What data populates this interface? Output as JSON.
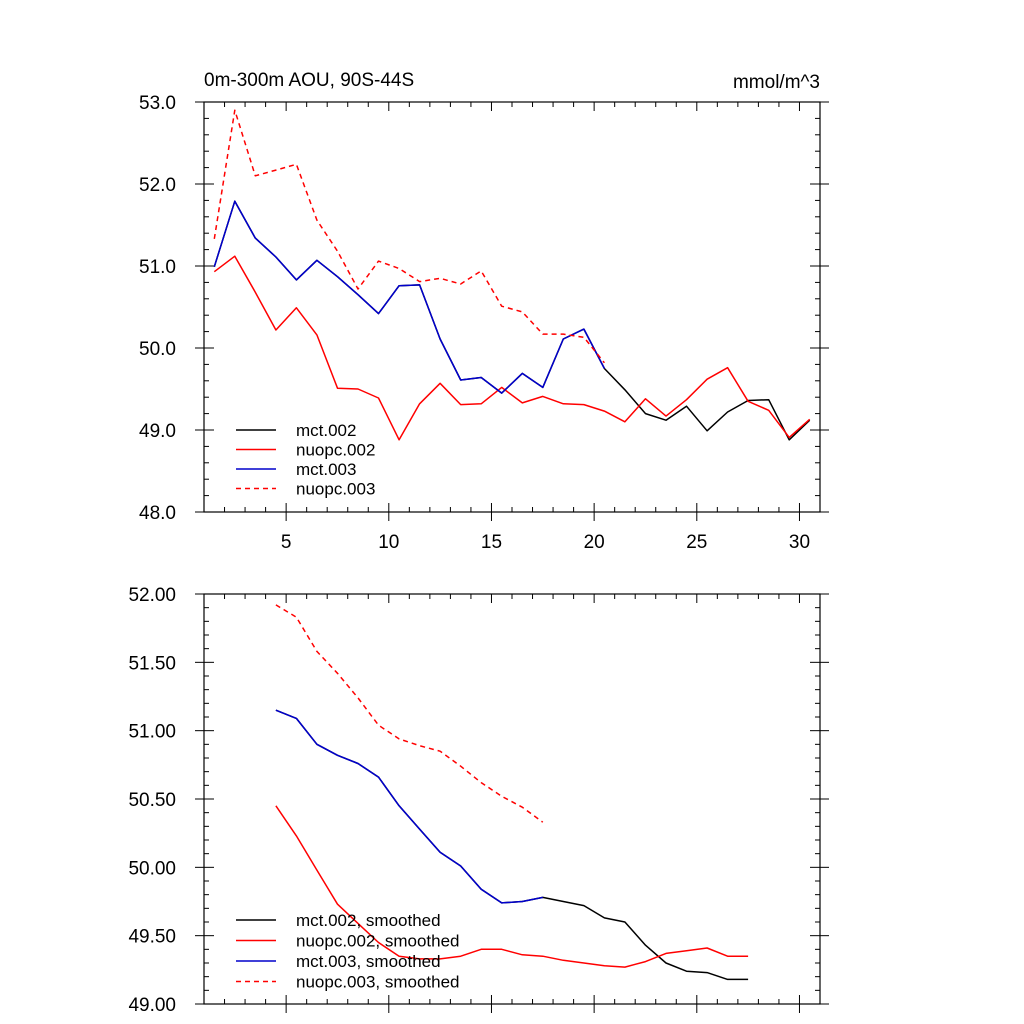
{
  "chart_data": [
    {
      "type": "line",
      "title": "0m-300m AOU, 90S-44S",
      "units": "mmol/m^3",
      "xlim": [
        1,
        31
      ],
      "ylim": [
        48.0,
        53.0
      ],
      "x_ticks": [
        5,
        10,
        15,
        20,
        25,
        30
      ],
      "x_tick_labels": [
        "5",
        "10",
        "15",
        "20",
        "25",
        "30"
      ],
      "y_ticks": [
        48.0,
        49.0,
        50.0,
        51.0,
        52.0,
        53.0
      ],
      "y_tick_labels": [
        "48.0",
        "49.0",
        "50.0",
        "51.0",
        "52.0",
        "53.0"
      ],
      "series": [
        {
          "name": "mct.002",
          "color": "#000000",
          "dash": false,
          "x": [
            1.5,
            2.5,
            3.5,
            4.5,
            5.5,
            6.5,
            7.5,
            8.5,
            9.5,
            10.5,
            11.5,
            12.5,
            13.5,
            14.5,
            15.5,
            16.5,
            17.5,
            18.5,
            19.5,
            20.5,
            21.5,
            22.5,
            23.5,
            24.5,
            25.5,
            26.5,
            27.5,
            28.5,
            29.5,
            30.5
          ],
          "y": [
            50.99,
            51.79,
            51.34,
            51.11,
            50.83,
            51.07,
            50.87,
            50.65,
            50.42,
            50.76,
            50.77,
            50.11,
            49.61,
            49.64,
            49.45,
            49.69,
            49.52,
            50.11,
            50.23,
            49.75,
            49.49,
            49.2,
            49.12,
            49.29,
            48.99,
            49.22,
            49.36,
            49.37,
            48.88,
            49.12
          ]
        },
        {
          "name": "nuopc.002",
          "color": "#ff0000",
          "dash": false,
          "x": [
            1.5,
            2.5,
            3.5,
            4.5,
            5.5,
            6.5,
            7.5,
            8.5,
            9.5,
            10.5,
            11.5,
            12.5,
            13.5,
            14.5,
            15.5,
            16.5,
            17.5,
            18.5,
            19.5,
            20.5,
            21.5,
            22.5,
            23.5,
            24.5,
            25.5,
            26.5,
            27.5,
            28.5,
            29.5,
            30.5
          ],
          "y": [
            50.93,
            51.12,
            50.68,
            50.22,
            50.49,
            50.16,
            49.51,
            49.5,
            49.39,
            48.88,
            49.32,
            49.57,
            49.31,
            49.32,
            49.52,
            49.33,
            49.41,
            49.32,
            49.31,
            49.23,
            49.1,
            49.38,
            49.17,
            49.37,
            49.62,
            49.76,
            49.35,
            49.24,
            48.91,
            49.13
          ]
        },
        {
          "name": "mct.003",
          "color": "#0000cc",
          "dash": false,
          "x": [
            1.5,
            2.5,
            3.5,
            4.5,
            5.5,
            6.5,
            7.5,
            8.5,
            9.5,
            10.5,
            11.5,
            12.5,
            13.5,
            14.5,
            15.5,
            16.5,
            17.5,
            18.5,
            19.5,
            20.5
          ],
          "y": [
            50.99,
            51.79,
            51.34,
            51.11,
            50.83,
            51.07,
            50.87,
            50.65,
            50.42,
            50.76,
            50.77,
            50.11,
            49.61,
            49.64,
            49.45,
            49.69,
            49.52,
            50.11,
            50.23,
            49.75
          ]
        },
        {
          "name": "nuopc.003",
          "color": "#ff0000",
          "dash": true,
          "x": [
            1.5,
            2.5,
            3.5,
            4.5,
            5.5,
            6.5,
            7.5,
            8.5,
            9.5,
            10.5,
            11.5,
            12.5,
            13.5,
            14.5,
            15.5,
            16.5,
            17.5,
            18.5,
            19.5,
            20.5
          ],
          "y": [
            51.33,
            52.9,
            52.1,
            52.17,
            52.24,
            51.56,
            51.18,
            50.72,
            51.06,
            50.97,
            50.81,
            50.85,
            50.78,
            50.94,
            50.51,
            50.44,
            50.17,
            50.17,
            50.13,
            49.82
          ]
        }
      ]
    },
    {
      "type": "line",
      "xlim": [
        1,
        31
      ],
      "ylim": [
        49.0,
        52.0
      ],
      "x_ticks": [
        5,
        10,
        15,
        20,
        25,
        30
      ],
      "y_ticks": [
        49.0,
        49.5,
        50.0,
        50.5,
        51.0,
        51.5,
        52.0
      ],
      "y_tick_labels": [
        "49.00",
        "49.50",
        "50.00",
        "50.50",
        "51.00",
        "51.50",
        "52.00"
      ],
      "series": [
        {
          "name": "mct.002, smoothed",
          "color": "#000000",
          "dash": false,
          "x": [
            4.5,
            5.5,
            6.5,
            7.5,
            8.5,
            9.5,
            10.5,
            11.5,
            12.5,
            13.5,
            14.5,
            15.5,
            16.5,
            17.5,
            18.5,
            19.5,
            20.5,
            21.5,
            22.5,
            23.5,
            24.5,
            25.5,
            26.5,
            27.5
          ],
          "y": [
            51.15,
            51.09,
            50.9,
            50.82,
            50.76,
            50.66,
            50.45,
            50.28,
            50.11,
            50.01,
            49.84,
            49.74,
            49.75,
            49.78,
            49.75,
            49.72,
            49.63,
            49.6,
            49.43,
            49.3,
            49.24,
            49.23,
            49.18,
            49.18
          ]
        },
        {
          "name": "nuopc.002, smoothed",
          "color": "#ff0000",
          "dash": false,
          "x": [
            4.5,
            5.5,
            6.5,
            7.5,
            8.5,
            9.5,
            10.5,
            11.5,
            12.5,
            13.5,
            14.5,
            15.5,
            16.5,
            17.5,
            18.5,
            19.5,
            20.5,
            21.5,
            22.5,
            23.5,
            24.5,
            25.5,
            26.5,
            27.5
          ],
          "y": [
            50.45,
            50.23,
            49.98,
            49.73,
            49.59,
            49.45,
            49.35,
            49.33,
            49.33,
            49.35,
            49.4,
            49.4,
            49.36,
            49.35,
            49.32,
            49.3,
            49.28,
            49.27,
            49.31,
            49.37,
            49.39,
            49.41,
            49.35,
            49.35
          ]
        },
        {
          "name": "mct.003, smoothed",
          "color": "#0000cc",
          "dash": false,
          "x": [
            4.5,
            5.5,
            6.5,
            7.5,
            8.5,
            9.5,
            10.5,
            11.5,
            12.5,
            13.5,
            14.5,
            15.5,
            16.5,
            17.5
          ],
          "y": [
            51.15,
            51.09,
            50.9,
            50.82,
            50.76,
            50.66,
            50.45,
            50.28,
            50.11,
            50.01,
            49.84,
            49.74,
            49.75,
            49.78
          ]
        },
        {
          "name": "nuopc.003, smoothed",
          "color": "#ff0000",
          "dash": true,
          "x": [
            4.5,
            5.5,
            6.5,
            7.5,
            8.5,
            9.5,
            10.5,
            11.5,
            12.5,
            13.5,
            14.5,
            15.5,
            16.5,
            17.5
          ],
          "y": [
            51.92,
            51.83,
            51.58,
            51.42,
            51.24,
            51.04,
            50.94,
            50.89,
            50.85,
            50.74,
            50.62,
            50.52,
            50.44,
            50.33
          ]
        }
      ]
    }
  ]
}
